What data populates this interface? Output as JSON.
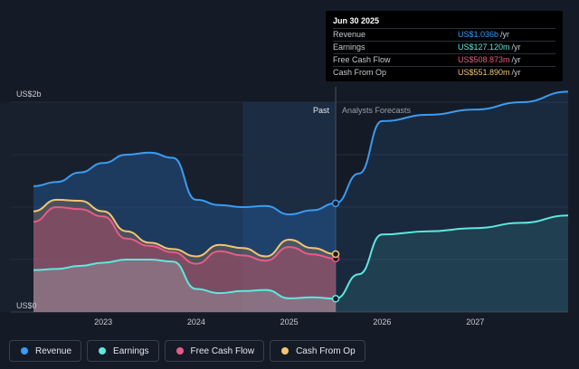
{
  "tooltip": {
    "date": "Jun 30 2025",
    "rows": [
      {
        "label": "Revenue",
        "value": "US$1.036b",
        "unit": "/yr",
        "color": "#3b9cf0"
      },
      {
        "label": "Earnings",
        "value": "US$127.120m",
        "unit": "/yr",
        "color": "#5ee8de"
      },
      {
        "label": "Free Cash Flow",
        "value": "US$508.873m",
        "unit": "/yr",
        "color": "#e85b86"
      },
      {
        "label": "Cash From Op",
        "value": "US$551.890m",
        "unit": "/yr",
        "color": "#f2c572"
      }
    ]
  },
  "legend": [
    {
      "label": "Revenue",
      "color": "#3b9cf0"
    },
    {
      "label": "Earnings",
      "color": "#5ee8de"
    },
    {
      "label": "Free Cash Flow",
      "color": "#e85b86"
    },
    {
      "label": "Cash From Op",
      "color": "#f2c572"
    }
  ],
  "chart_data": {
    "type": "area",
    "y_unit": "US$ b",
    "ylim": [
      0,
      2
    ],
    "y_tick_labels": [
      {
        "value": 2,
        "label": "US$2b"
      },
      {
        "value": 0,
        "label": "US$0"
      }
    ],
    "xlim": [
      2022.25,
      2028.0
    ],
    "x_ticks": [
      2023,
      2024,
      2025,
      2026,
      2027
    ],
    "x_tick_labels": [
      "2023",
      "2024",
      "2025",
      "2026",
      "2027"
    ],
    "divider_x": 2025.5,
    "shade_start_x": 2024.5,
    "past_label": "Past",
    "forecast_label": "Analysts Forecasts",
    "grid": true,
    "series": [
      {
        "name": "Revenue",
        "color": "#3b9cf0",
        "past": [
          [
            2022.25,
            1.2
          ],
          [
            2022.5,
            1.24
          ],
          [
            2022.75,
            1.33
          ],
          [
            2023.0,
            1.42
          ],
          [
            2023.25,
            1.5
          ],
          [
            2023.5,
            1.52
          ],
          [
            2023.75,
            1.47
          ],
          [
            2024.0,
            1.07
          ],
          [
            2024.25,
            1.02
          ],
          [
            2024.5,
            1.0
          ],
          [
            2024.75,
            1.01
          ],
          [
            2025.0,
            0.93
          ],
          [
            2025.25,
            0.97
          ],
          [
            2025.5,
            1.036
          ]
        ],
        "forecast": [
          [
            2025.5,
            1.036
          ],
          [
            2025.75,
            1.32
          ],
          [
            2026.0,
            1.82
          ],
          [
            2026.5,
            1.88
          ],
          [
            2027.0,
            1.93
          ],
          [
            2027.5,
            2.0
          ],
          [
            2028.0,
            2.1
          ]
        ]
      },
      {
        "name": "Earnings",
        "color": "#5ee8de",
        "past": [
          [
            2022.25,
            0.4
          ],
          [
            2022.5,
            0.41
          ],
          [
            2022.75,
            0.44
          ],
          [
            2023.0,
            0.47
          ],
          [
            2023.25,
            0.5
          ],
          [
            2023.5,
            0.5
          ],
          [
            2023.75,
            0.48
          ],
          [
            2024.0,
            0.22
          ],
          [
            2024.25,
            0.18
          ],
          [
            2024.5,
            0.2
          ],
          [
            2024.75,
            0.21
          ],
          [
            2025.0,
            0.13
          ],
          [
            2025.25,
            0.14
          ],
          [
            2025.5,
            0.127
          ]
        ],
        "forecast": [
          [
            2025.5,
            0.127
          ],
          [
            2025.75,
            0.36
          ],
          [
            2026.0,
            0.74
          ],
          [
            2026.5,
            0.77
          ],
          [
            2027.0,
            0.8
          ],
          [
            2027.5,
            0.85
          ],
          [
            2028.0,
            0.92
          ]
        ]
      },
      {
        "name": "Free Cash Flow",
        "color": "#e85b86",
        "past": [
          [
            2022.25,
            0.86
          ],
          [
            2022.5,
            1.0
          ],
          [
            2022.75,
            0.98
          ],
          [
            2023.0,
            0.91
          ],
          [
            2023.25,
            0.7
          ],
          [
            2023.5,
            0.63
          ],
          [
            2023.75,
            0.57
          ],
          [
            2024.0,
            0.46
          ],
          [
            2024.25,
            0.58
          ],
          [
            2024.5,
            0.54
          ],
          [
            2024.75,
            0.49
          ],
          [
            2025.0,
            0.62
          ],
          [
            2025.25,
            0.55
          ],
          [
            2025.5,
            0.509
          ]
        ]
      },
      {
        "name": "Cash From Op",
        "color": "#f2c572",
        "past": [
          [
            2022.25,
            0.96
          ],
          [
            2022.5,
            1.07
          ],
          [
            2022.75,
            1.06
          ],
          [
            2023.0,
            0.96
          ],
          [
            2023.25,
            0.77
          ],
          [
            2023.5,
            0.66
          ],
          [
            2023.75,
            0.6
          ],
          [
            2024.0,
            0.53
          ],
          [
            2024.25,
            0.64
          ],
          [
            2024.5,
            0.61
          ],
          [
            2024.75,
            0.53
          ],
          [
            2025.0,
            0.69
          ],
          [
            2025.25,
            0.61
          ],
          [
            2025.5,
            0.552
          ]
        ]
      }
    ]
  }
}
